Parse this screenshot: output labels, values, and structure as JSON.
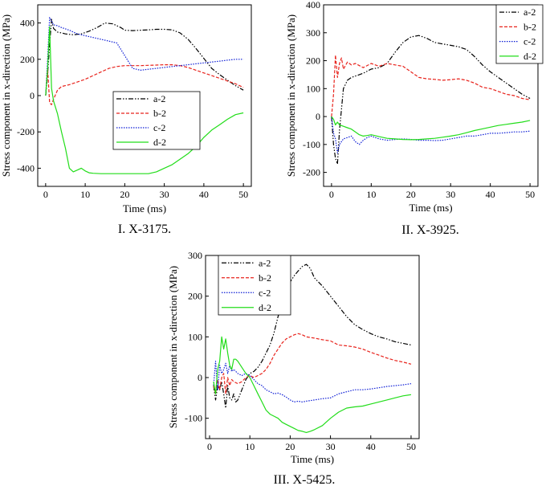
{
  "chart_data": [
    {
      "id": "p1",
      "type": "line",
      "caption": "I. X-3175.",
      "xlabel": "Time (ms)",
      "ylabel": "Stress component in x-direction (MPa)",
      "xlim": [
        -2,
        52
      ],
      "ylim": [
        -500,
        500
      ],
      "xticks": [
        0,
        10,
        20,
        30,
        40,
        50
      ],
      "yticks": [
        -400,
        -200,
        0,
        200,
        400
      ],
      "legend_position": "inside-left",
      "series": [
        {
          "name": "a-2",
          "color": "#000000",
          "dash": "6,2,1.5,2,1.5,2",
          "x": [
            0,
            0.5,
            1,
            1.5,
            2,
            3,
            4,
            5,
            7,
            9,
            11,
            13,
            15,
            17,
            19,
            20,
            22,
            24,
            26,
            28,
            30,
            32,
            34,
            36,
            38,
            40,
            42,
            44,
            46,
            48,
            50
          ],
          "y": [
            0,
            120,
            280,
            420,
            370,
            350,
            345,
            340,
            335,
            340,
            355,
            375,
            400,
            395,
            375,
            360,
            358,
            360,
            362,
            365,
            365,
            362,
            345,
            310,
            260,
            205,
            150,
            115,
            85,
            55,
            30
          ]
        },
        {
          "name": "b-2",
          "color": "#e8231c",
          "dash": "4,2",
          "x": [
            0,
            0.5,
            1,
            1.5,
            2,
            3,
            4,
            6,
            8,
            10,
            12,
            14,
            16,
            18,
            20,
            22,
            24,
            26,
            28,
            30,
            32,
            34,
            36,
            38,
            40,
            42,
            44,
            46,
            48,
            50
          ],
          "y": [
            0,
            150,
            -40,
            -50,
            -20,
            30,
            50,
            60,
            75,
            90,
            110,
            130,
            150,
            160,
            165,
            165,
            165,
            167,
            168,
            170,
            170,
            165,
            155,
            140,
            125,
            110,
            95,
            80,
            65,
            45
          ]
        },
        {
          "name": "c-2",
          "color": "#0f1fd6",
          "dash": "1.5,1.5",
          "x": [
            0,
            0.5,
            1,
            1.5,
            2,
            3,
            4,
            6,
            8,
            10,
            12,
            14,
            16,
            18,
            20,
            22,
            24,
            26,
            28,
            30,
            32,
            34,
            36,
            38,
            40,
            42,
            44,
            46,
            48,
            50
          ],
          "y": [
            0,
            200,
            430,
            410,
            390,
            385,
            375,
            360,
            340,
            330,
            320,
            310,
            300,
            290,
            220,
            150,
            140,
            145,
            150,
            155,
            160,
            165,
            170,
            175,
            180,
            185,
            190,
            195,
            200,
            200
          ]
        },
        {
          "name": "d-2",
          "color": "#22dd1a",
          "dash": "",
          "x": [
            0,
            0.5,
            1,
            1.5,
            2,
            3,
            4,
            5,
            6,
            7,
            8,
            9,
            10,
            11,
            12,
            14,
            16,
            18,
            20,
            22,
            24,
            26,
            28,
            30,
            32,
            34,
            36,
            38,
            40,
            42,
            44,
            46,
            48,
            50
          ],
          "y": [
            0,
            150,
            380,
            40,
            -30,
            -100,
            -200,
            -290,
            -400,
            -420,
            -410,
            -400,
            -415,
            -425,
            -428,
            -430,
            -430,
            -430,
            -430,
            -430,
            -430,
            -430,
            -420,
            -400,
            -380,
            -350,
            -320,
            -280,
            -230,
            -190,
            -160,
            -130,
            -105,
            -95
          ]
        }
      ]
    },
    {
      "id": "p2",
      "type": "line",
      "caption": "II. X-3925.",
      "xlabel": "Time (ms)",
      "ylabel": "Stress component in x-direction (MPa)",
      "xlim": [
        -2,
        52
      ],
      "ylim": [
        -250,
        400
      ],
      "xticks": [
        0,
        10,
        20,
        30,
        40,
        50
      ],
      "yticks": [
        -200,
        -100,
        0,
        100,
        200,
        300,
        400
      ],
      "legend_position": "top-right",
      "series": [
        {
          "name": "a-2",
          "color": "#000000",
          "dash": "6,2,1.5,2,1.5,2",
          "x": [
            0,
            0.5,
            1,
            1.5,
            2,
            3,
            4,
            5,
            6,
            8,
            10,
            12,
            14,
            16,
            18,
            20,
            22,
            24,
            26,
            28,
            30,
            32,
            34,
            36,
            38,
            40,
            42,
            44,
            46,
            48,
            50
          ],
          "y": [
            0,
            -100,
            -150,
            -170,
            -50,
            100,
            130,
            140,
            145,
            155,
            170,
            175,
            190,
            230,
            265,
            285,
            290,
            280,
            265,
            260,
            255,
            250,
            240,
            215,
            185,
            160,
            140,
            120,
            100,
            80,
            65
          ]
        },
        {
          "name": "b-2",
          "color": "#e8231c",
          "dash": "4,2",
          "x": [
            0,
            0.5,
            1,
            1.5,
            2,
            2.5,
            3,
            4,
            5,
            6,
            8,
            10,
            12,
            14,
            16,
            18,
            20,
            22,
            24,
            26,
            28,
            30,
            32,
            34,
            36,
            38,
            40,
            42,
            44,
            46,
            48,
            50
          ],
          "y": [
            0,
            80,
            220,
            140,
            190,
            210,
            170,
            195,
            185,
            190,
            175,
            190,
            180,
            190,
            185,
            180,
            160,
            140,
            135,
            133,
            130,
            132,
            135,
            130,
            120,
            105,
            100,
            90,
            80,
            75,
            65,
            60
          ]
        },
        {
          "name": "c-2",
          "color": "#0f1fd6",
          "dash": "1.5,1.5",
          "x": [
            0,
            0.5,
            1,
            1.5,
            2,
            3,
            4,
            5,
            6,
            7,
            8,
            9,
            10,
            12,
            14,
            16,
            18,
            20,
            22,
            24,
            26,
            28,
            30,
            32,
            34,
            36,
            38,
            40,
            42,
            44,
            46,
            48,
            50
          ],
          "y": [
            0,
            -60,
            -80,
            -130,
            -100,
            -80,
            -75,
            -70,
            -90,
            -100,
            -85,
            -75,
            -70,
            -80,
            -85,
            -82,
            -80,
            -82,
            -85,
            -85,
            -86,
            -85,
            -80,
            -75,
            -70,
            -70,
            -65,
            -60,
            -60,
            -58,
            -55,
            -55,
            -52
          ]
        },
        {
          "name": "d-2",
          "color": "#22dd1a",
          "dash": "",
          "x": [
            0,
            0.5,
            1,
            1.5,
            2,
            3,
            4,
            5,
            6,
            7,
            8,
            9,
            10,
            12,
            14,
            16,
            18,
            20,
            22,
            24,
            26,
            28,
            30,
            32,
            34,
            36,
            38,
            40,
            42,
            44,
            46,
            48,
            50
          ],
          "y": [
            0,
            -10,
            -30,
            -20,
            -30,
            -35,
            -40,
            -45,
            -55,
            -65,
            -70,
            -68,
            -65,
            -72,
            -78,
            -80,
            -82,
            -83,
            -82,
            -80,
            -78,
            -74,
            -70,
            -65,
            -58,
            -50,
            -44,
            -38,
            -32,
            -28,
            -24,
            -20,
            -14
          ]
        }
      ]
    },
    {
      "id": "p3",
      "type": "line",
      "caption": "III. X-5425.",
      "xlabel": "Time (ms)",
      "ylabel": "Stress component in x-direction (MPa)",
      "xlim": [
        -1,
        52
      ],
      "ylim": [
        -150,
        300
      ],
      "xticks": [
        0,
        10,
        20,
        30,
        40,
        50
      ],
      "yticks": [
        -100,
        0,
        100,
        200,
        300
      ],
      "legend_position": "top-left",
      "series": [
        {
          "name": "a-2",
          "color": "#000000",
          "dash": "6,2,1.5,2,1.5,2",
          "x": [
            1,
            1.5,
            2,
            2.5,
            3,
            3.5,
            4,
            4.5,
            5,
            5.5,
            6,
            6.5,
            7,
            8,
            9,
            10,
            11,
            12,
            13,
            14,
            15,
            16,
            17,
            18,
            19,
            20,
            21,
            22,
            23,
            24,
            25,
            26,
            28,
            30,
            32,
            34,
            36,
            38,
            40,
            42,
            44,
            46,
            48,
            50
          ],
          "y": [
            -20,
            -55,
            -20,
            -30,
            -10,
            -40,
            -75,
            -20,
            -50,
            -55,
            -40,
            -60,
            -55,
            -30,
            -5,
            10,
            15,
            25,
            40,
            60,
            80,
            110,
            150,
            180,
            210,
            235,
            250,
            262,
            273,
            278,
            268,
            245,
            225,
            200,
            175,
            150,
            130,
            118,
            108,
            100,
            95,
            88,
            84,
            80
          ]
        },
        {
          "name": "b-2",
          "color": "#e8231c",
          "dash": "4,2",
          "x": [
            1,
            1.5,
            2,
            2.5,
            3,
            3.5,
            4,
            4.5,
            5,
            5.5,
            6,
            7,
            8,
            9,
            10,
            11,
            12,
            13,
            14,
            15,
            16,
            17,
            18,
            19,
            20,
            21,
            22,
            23,
            24,
            26,
            28,
            30,
            32,
            34,
            36,
            38,
            40,
            42,
            44,
            46,
            48,
            50
          ],
          "y": [
            -20,
            -40,
            -5,
            -30,
            0,
            10,
            -40,
            0,
            -20,
            -5,
            -10,
            -15,
            -10,
            0,
            5,
            0,
            5,
            10,
            20,
            35,
            55,
            70,
            85,
            95,
            100,
            105,
            108,
            105,
            100,
            97,
            93,
            90,
            80,
            78,
            75,
            70,
            62,
            55,
            48,
            42,
            38,
            33
          ]
        },
        {
          "name": "c-2",
          "color": "#0f1fd6",
          "dash": "1.5,1.5",
          "x": [
            1,
            1.5,
            2,
            2.5,
            3,
            3.5,
            4,
            4.5,
            5,
            5.5,
            6,
            7,
            8,
            9,
            10,
            11,
            12,
            13,
            14,
            15,
            16,
            17,
            18,
            19,
            20,
            21,
            22,
            23,
            24,
            26,
            28,
            30,
            32,
            34,
            36,
            38,
            40,
            42,
            44,
            46,
            48,
            50
          ],
          "y": [
            -20,
            40,
            -30,
            30,
            10,
            20,
            35,
            10,
            30,
            15,
            20,
            10,
            5,
            10,
            5,
            -5,
            -15,
            -20,
            -30,
            -35,
            -40,
            -38,
            -42,
            -48,
            -55,
            -60,
            -58,
            -60,
            -58,
            -55,
            -52,
            -50,
            -40,
            -35,
            -30,
            -30,
            -28,
            -25,
            -22,
            -20,
            -18,
            -15
          ]
        },
        {
          "name": "d-2",
          "color": "#22dd1a",
          "dash": "",
          "x": [
            1,
            1.5,
            2,
            2.5,
            3,
            3.5,
            4,
            4.5,
            5,
            5.5,
            6,
            6.5,
            7,
            8,
            9,
            10,
            11,
            12,
            13,
            14,
            15,
            16,
            17,
            18,
            19,
            20,
            21,
            22,
            23,
            24,
            25,
            26,
            28,
            30,
            32,
            34,
            36,
            38,
            40,
            42,
            44,
            46,
            48,
            50
          ],
          "y": [
            -10,
            -40,
            20,
            40,
            100,
            70,
            95,
            60,
            30,
            20,
            45,
            45,
            40,
            25,
            10,
            0,
            -20,
            -40,
            -60,
            -80,
            -90,
            -95,
            -100,
            -110,
            -115,
            -120,
            -125,
            -130,
            -132,
            -135,
            -132,
            -128,
            -118,
            -100,
            -85,
            -75,
            -72,
            -70,
            -65,
            -60,
            -55,
            -50,
            -45,
            -42
          ]
        }
      ]
    }
  ]
}
